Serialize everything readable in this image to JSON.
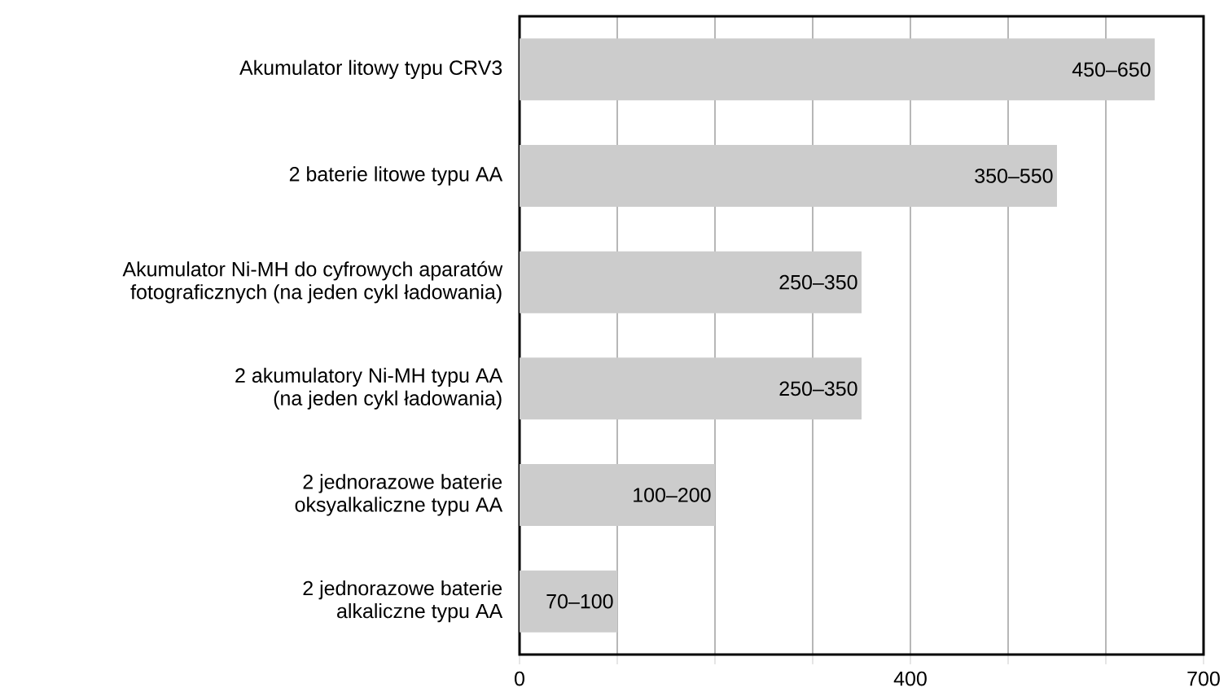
{
  "chart_data": {
    "type": "bar",
    "orientation": "horizontal",
    "categories": [
      "Akumulator litowy typu CRV3",
      "2 baterie litowe typu AA",
      "Akumulator Ni-MH do cyfrowych aparatów fotograficznych (na jeden cykl ładowania)",
      "2 akumulatory Ni-MH typu AA (na jeden cykl ładowania)",
      "2 jednorazowe baterie oksyalkaliczne typu AA",
      "2 jednorazowe baterie alkaliczne typu AA"
    ],
    "values": [
      650,
      550,
      350,
      350,
      200,
      100
    ],
    "value_labels": [
      "450–650",
      "350–550",
      "250–350",
      "250–350",
      "100–200",
      "70–100"
    ],
    "color": "#cccccc",
    "xlim": [
      0,
      700
    ],
    "xticks": [
      0,
      {
        "value": 100,
        "label": null
      },
      {
        "value": 200,
        "label": null
      },
      {
        "value": 300,
        "label": null
      },
      400,
      {
        "value": 500,
        "label": null
      },
      {
        "value": 600,
        "label": null
      },
      700
    ],
    "grid": "x"
  }
}
